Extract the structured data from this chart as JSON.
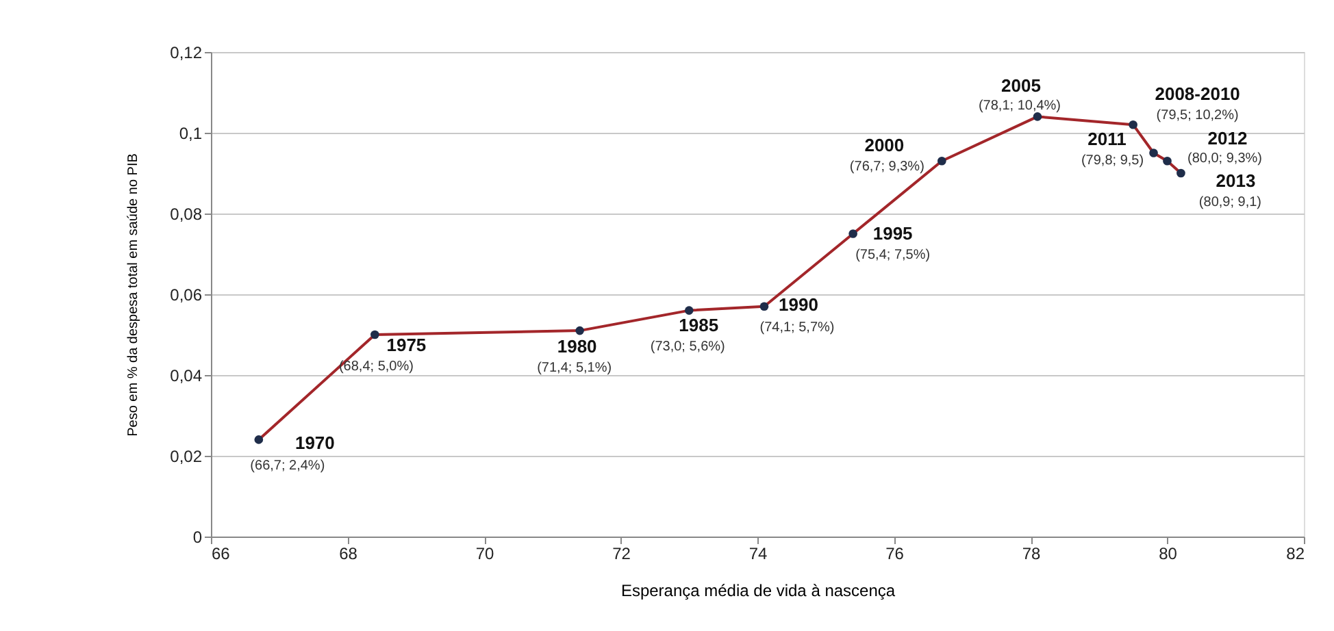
{
  "chart_data": {
    "type": "line",
    "xlabel": "Esperança média de vida à nascença",
    "ylabel": "Peso em % da despesa total em saúde no PIB",
    "x": [
      66.7,
      68.4,
      71.4,
      73.0,
      74.1,
      75.4,
      76.7,
      78.1,
      79.5,
      79.8,
      80.0,
      80.2
    ],
    "series": [
      {
        "color": "#a3262a",
        "values": [
          0.024,
          0.05,
          0.051,
          0.056,
          0.057,
          0.075,
          0.093,
          0.104,
          0.102,
          0.095,
          0.093,
          0.09
        ]
      }
    ],
    "xlim": [
      66,
      82
    ],
    "xticks": [
      66,
      68,
      70,
      72,
      74,
      76,
      78,
      80,
      82
    ],
    "ylim": [
      0,
      0.12
    ],
    "yticks": [
      0,
      {
        "value": 0.02,
        "label": "0,02"
      },
      {
        "value": 0.04,
        "label": "0,04"
      },
      {
        "value": 0.06,
        "label": "0,06"
      },
      {
        "value": 0.08,
        "label": "0,08"
      },
      {
        "value": 0.1,
        "label": "0,1"
      },
      {
        "value": 0.12,
        "label": "0,12"
      }
    ],
    "grid": "y",
    "marker": "circle",
    "line_style": "solid",
    "annotations": [
      {
        "text": "1970",
        "x": 66.7,
        "y": 0.024
      },
      {
        "text": "(66,7; 2,4%)",
        "x": 66.7,
        "y": 0.024
      },
      {
        "text": "1975",
        "x": 68.4,
        "y": 0.05
      },
      {
        "text": "(68,4; 5,0%)",
        "x": 68.4,
        "y": 0.05
      },
      {
        "text": "1980",
        "x": 71.4,
        "y": 0.051
      },
      {
        "text": "(71,4; 5,1%)",
        "x": 71.4,
        "y": 0.051
      },
      {
        "text": "1985",
        "x": 73.0,
        "y": 0.056
      },
      {
        "text": "(73,0; 5,6%)",
        "x": 73.0,
        "y": 0.056
      },
      {
        "text": "1990",
        "x": 74.1,
        "y": 0.057
      },
      {
        "text": "(74,1; 5,7%)",
        "x": 74.1,
        "y": 0.057
      },
      {
        "text": "1995",
        "x": 75.4,
        "y": 0.075
      },
      {
        "text": "(75,4; 7,5%)",
        "x": 75.4,
        "y": 0.075
      },
      {
        "text": "2000",
        "x": 76.7,
        "y": 0.093
      },
      {
        "text": "(76,7; 9,3%)",
        "x": 76.7,
        "y": 0.093
      },
      {
        "text": "2005",
        "x": 78.1,
        "y": 0.104
      },
      {
        "text": "(78,1; 10,4%)",
        "x": 78.1,
        "y": 0.104
      },
      {
        "text": "2008-2010",
        "x": 79.5,
        "y": 0.102
      },
      {
        "text": "(79,5; 10,2%)",
        "x": 79.5,
        "y": 0.102
      },
      {
        "text": "2011",
        "x": 79.8,
        "y": 0.095
      },
      {
        "text": "(79,8; 9,5)",
        "x": 79.8,
        "y": 0.095
      },
      {
        "text": "2012",
        "x": 80.0,
        "y": 0.093
      },
      {
        "text": "(80,0; 9,3%)",
        "x": 80.0,
        "y": 0.093
      },
      {
        "text": "2013",
        "x": 80.2,
        "y": 0.09
      },
      {
        "text": "(80,9; 9,1)",
        "x": 80.2,
        "y": 0.09
      }
    ]
  }
}
